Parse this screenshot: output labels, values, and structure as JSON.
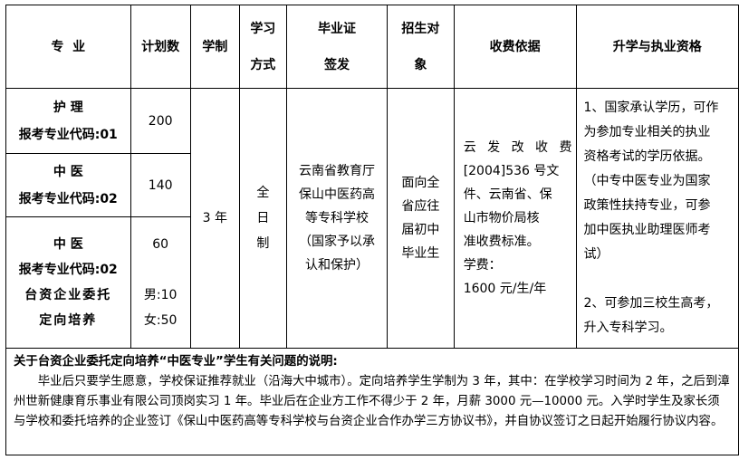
{
  "headers": {
    "major": "专  业",
    "plan": "计划数",
    "duration": "学制",
    "study_mode_lines": [
      "学习",
      "方式"
    ],
    "cert_lines": [
      "毕业证",
      "签发"
    ],
    "target_lines": [
      "招生对",
      "象"
    ],
    "fee": "收费依据",
    "qualification": "升学与执业资格"
  },
  "rows": [
    {
      "major": "护 理",
      "code": "报考专业代码:01",
      "plan": "200"
    },
    {
      "major": "中 医",
      "code": "报考专业代码:02",
      "plan": "140"
    },
    {
      "major": "中 医",
      "code": "报考专业代码:02",
      "extra_lines": [
        "台资企业委托",
        "定向培养"
      ],
      "plan": "60",
      "male": "男:10",
      "female": "女:50"
    }
  ],
  "shared": {
    "duration": "3 年",
    "study_mode_lines": [
      "全",
      "日",
      "制"
    ],
    "cert_lines": [
      "云南省教育厅",
      "保山中医药高",
      "等专科学校",
      "（国家予以承",
      "认和保护）"
    ],
    "target_lines": [
      "面向全",
      "省应往",
      "届初中",
      "毕业生"
    ],
    "fee_lines": [
      "云 发 改 收 费",
      "[2004]536 号文",
      "件、云南省、保",
      "山市物价局核",
      "准收费标准。",
      "学费：",
      "1600 元/生/年"
    ],
    "qualification_lines": [
      "1、国家承认学历，可作",
      "为参加专业相关的执业",
      "资格考试的学历依据。",
      "（中专中医专业为国家",
      "政策性扶持专业，可参",
      "加中医执业助理医师考",
      "试）",
      "",
      "2、可参加三校生高考，",
      "升入专科学习。"
    ]
  },
  "note": {
    "title": "关于台资企业委托定向培养“中医专业”学生有关问题的说明:",
    "body": "毕业后只要学生愿意，学校保证推荐就业（沿海大中城市）。定向培养学生学制为 3 年，其中：在学校学习时间为 2 年，之后到漳州世新健康育乐事业有限公司顶岗实习 1 年。毕业后在企业方工作不得少于 2 年，月薪 3000 元—10000 元。入学时学生及家长须与学校和委托培养的企业签订《保山中医药高等专科学校与台资企业合作办学三方协议书》，并自协议签订之日起开始履行协议内容。"
  }
}
